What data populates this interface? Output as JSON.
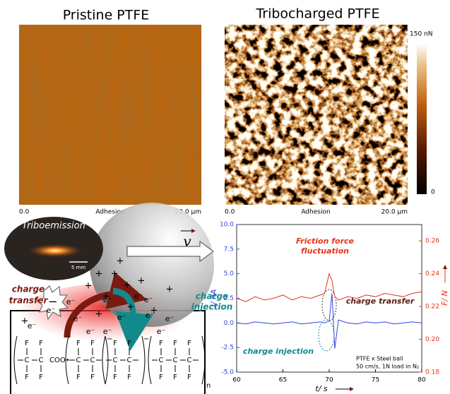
{
  "panels": {
    "pristine": {
      "title": "Pristine PTFE",
      "scale_start": "0.0",
      "channel": "Adhesion",
      "scale_end": "20.0 µm"
    },
    "tribocharged": {
      "title": "Tribocharged PTFE",
      "scale_start": "0.0",
      "channel": "Adhesion",
      "scale_end": "20.0 µm",
      "colorbar_max": "150 nN",
      "colorbar_min": "0"
    }
  },
  "schematic": {
    "photo_label": "Triboemission",
    "scale_bar": "5 mm",
    "velocity": "v",
    "charge_transfer": [
      "charge",
      "transfer"
    ],
    "charge_injection": [
      "charge",
      "injection"
    ],
    "electron": "e⁻",
    "positive": "+",
    "negative": "−",
    "fluorine": "F",
    "carbon": "C",
    "end_group": "COO•",
    "repeat": "n"
  },
  "chart_data": {
    "type": "line",
    "xlabel": "t/ s",
    "ylabel": "I/ nA",
    "y2label": "F/ N",
    "x": [
      60,
      61,
      62,
      63,
      64,
      65,
      66,
      67,
      68,
      69,
      69.5,
      70,
      70.3,
      70.6,
      71,
      72,
      73,
      74,
      75,
      76,
      77,
      78,
      79,
      80
    ],
    "xlim": [
      60,
      80
    ],
    "xticks": [
      60,
      65,
      70,
      75,
      80
    ],
    "ylim": [
      -5,
      10
    ],
    "yticks": [
      {
        "value": -5,
        "label": "-5.0"
      },
      {
        "value": -2.5,
        "label": "-2.5"
      },
      {
        "value": 0,
        "label": "0.0"
      },
      {
        "value": 2.5,
        "label": "2.5"
      },
      {
        "value": 5,
        "label": "5.0"
      },
      {
        "value": 7.5,
        "label": "7.5"
      },
      {
        "value": 10,
        "label": "10.0"
      }
    ],
    "y2lim": [
      0.18,
      0.27
    ],
    "y2ticks": [
      0.18,
      {
        "value": 0.2,
        "label": "0.20"
      },
      0.22,
      0.24,
      0.26
    ],
    "series": [
      {
        "color": "#3344dd",
        "values": [
          0,
          -0.1,
          0.1,
          0,
          -0.1,
          0,
          0.1,
          -0.1,
          0,
          0.1,
          0,
          0.2,
          3.0,
          -2.6,
          0.3,
          0,
          -0.1,
          0.1,
          0,
          0.1,
          -0.1,
          0,
          0.1,
          0
        ]
      },
      {
        "color": "#e8311a",
        "axis": "y2",
        "values": [
          0.225,
          0.223,
          0.226,
          0.224,
          0.225,
          0.227,
          0.224,
          0.226,
          0.225,
          0.227,
          0.228,
          0.24,
          0.236,
          0.226,
          0.224,
          0.226,
          0.225,
          0.227,
          0.226,
          0.228,
          0.227,
          0.226,
          0.228,
          0.229
        ]
      }
    ],
    "annotations": {
      "friction": [
        "Friction force",
        "fluctuation"
      ],
      "transfer": "charge transfer",
      "injection": "charge injection",
      "note": [
        "PTFE x Steel ball",
        "50 cm/s, 1N load in N₂"
      ]
    }
  }
}
